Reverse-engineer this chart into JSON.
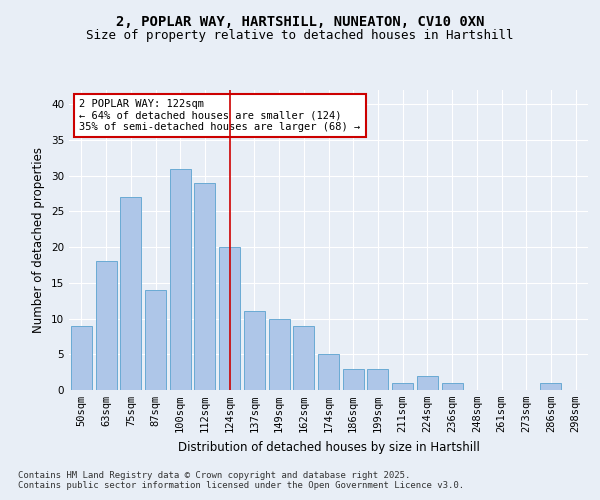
{
  "title1": "2, POPLAR WAY, HARTSHILL, NUNEATON, CV10 0XN",
  "title2": "Size of property relative to detached houses in Hartshill",
  "xlabel": "Distribution of detached houses by size in Hartshill",
  "ylabel": "Number of detached properties",
  "categories": [
    "50sqm",
    "63sqm",
    "75sqm",
    "87sqm",
    "100sqm",
    "112sqm",
    "124sqm",
    "137sqm",
    "149sqm",
    "162sqm",
    "174sqm",
    "186sqm",
    "199sqm",
    "211sqm",
    "224sqm",
    "236sqm",
    "248sqm",
    "261sqm",
    "273sqm",
    "286sqm",
    "298sqm"
  ],
  "values": [
    9,
    18,
    27,
    14,
    31,
    29,
    20,
    11,
    10,
    9,
    5,
    3,
    3,
    1,
    2,
    1,
    0,
    0,
    0,
    1,
    0
  ],
  "bar_color": "#aec6e8",
  "bar_edge_color": "#6aaad4",
  "vline_color": "#cc0000",
  "annotation_text": "2 POPLAR WAY: 122sqm\n← 64% of detached houses are smaller (124)\n35% of semi-detached houses are larger (68) →",
  "annotation_box_color": "#ffffff",
  "annotation_box_edge_color": "#cc0000",
  "footer1": "Contains HM Land Registry data © Crown copyright and database right 2025.",
  "footer2": "Contains public sector information licensed under the Open Government Licence v3.0.",
  "bg_color": "#e8eef6",
  "plot_bg_color": "#e8eef6",
  "ylim": [
    0,
    42
  ],
  "yticks": [
    0,
    5,
    10,
    15,
    20,
    25,
    30,
    35,
    40
  ],
  "grid_color": "#ffffff",
  "title_fontsize": 10,
  "subtitle_fontsize": 9,
  "tick_fontsize": 7.5,
  "label_fontsize": 8.5,
  "annot_fontsize": 7.5
}
